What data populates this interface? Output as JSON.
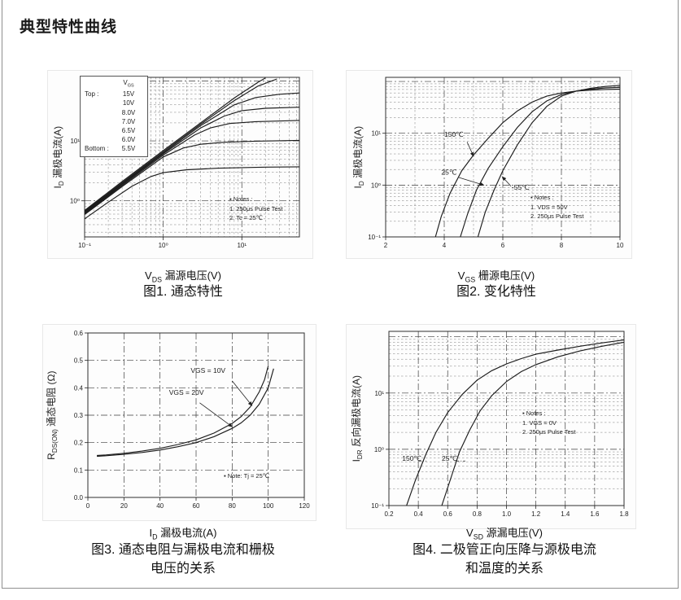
{
  "page": {
    "title": "典型特性曲线"
  },
  "chart_data": [
    {
      "id": "fig1",
      "type": "line",
      "caption": "图1. 通态特性",
      "xlabel": {
        "base": "V",
        "sub": "DS",
        "cn": "漏源电压(V)"
      },
      "ylabel": {
        "base": "I",
        "sub": "D",
        "cn": "漏极电流(A)"
      },
      "xscale": "log",
      "yscale": "log",
      "xlim": [
        0.1,
        54
      ],
      "ylim": [
        0.25,
        115
      ],
      "xticks": [
        {
          "v": 0.1,
          "l": "10⁻¹"
        },
        {
          "v": 1,
          "l": "10⁰"
        },
        {
          "v": 10,
          "l": "10¹"
        }
      ],
      "yticks": [
        {
          "v": 1,
          "l": "10⁰"
        },
        {
          "v": 10,
          "l": "10¹"
        }
      ],
      "legend": {
        "header": {
          "base": "V",
          "sub": "GS"
        },
        "top_label": "Top :",
        "bottom_label": "Bottom :",
        "values": [
          "15V",
          "10V",
          "8.0V",
          "7.0V",
          "6.5V",
          "6.0V",
          "5.5V"
        ]
      },
      "notes": [
        "▪ Notes :",
        "1. 250μs Pulse Test",
        "2. Tc = 25℃"
      ],
      "series": [
        {
          "name": "VGS=15V",
          "points": [
            [
              0.1,
              0.69
            ],
            [
              0.3,
              2.1
            ],
            [
              1,
              6.9
            ],
            [
              3,
              20
            ],
            [
              8,
              52
            ],
            [
              16,
              95
            ],
            [
              20,
              112
            ]
          ]
        },
        {
          "name": "VGS=10V",
          "points": [
            [
              0.1,
              0.67
            ],
            [
              0.3,
              2.0
            ],
            [
              1,
              6.6
            ],
            [
              3,
              19
            ],
            [
              8,
              47
            ],
            [
              16,
              82
            ],
            [
              28,
              108
            ]
          ]
        },
        {
          "name": "VGS=8.0V",
          "points": [
            [
              0.1,
              0.65
            ],
            [
              0.3,
              1.93
            ],
            [
              1,
              6.3
            ],
            [
              3,
              18
            ],
            [
              8,
              40
            ],
            [
              15,
              53
            ],
            [
              30,
              60
            ],
            [
              54,
              63
            ]
          ]
        },
        {
          "name": "VGS=7.0V",
          "points": [
            [
              0.1,
              0.63
            ],
            [
              0.3,
              1.87
            ],
            [
              1,
              6.1
            ],
            [
              3,
              16.5
            ],
            [
              6,
              26
            ],
            [
              10,
              32
            ],
            [
              20,
              35
            ],
            [
              54,
              36.5
            ]
          ]
        },
        {
          "name": "VGS=6.5V",
          "points": [
            [
              0.1,
              0.61
            ],
            [
              0.3,
              1.8
            ],
            [
              1,
              5.8
            ],
            [
              2.5,
              12.5
            ],
            [
              4,
              16.5
            ],
            [
              7,
              19.5
            ],
            [
              15,
              21
            ],
            [
              54,
              22
            ]
          ]
        },
        {
          "name": "VGS=6.0V",
          "points": [
            [
              0.1,
              0.59
            ],
            [
              0.3,
              1.73
            ],
            [
              1,
              5.4
            ],
            [
              1.8,
              7.6
            ],
            [
              3,
              8.8
            ],
            [
              6,
              9.5
            ],
            [
              15,
              9.9
            ],
            [
              54,
              10.2
            ]
          ]
        },
        {
          "name": "VGS=5.5V",
          "points": [
            [
              0.1,
              0.5
            ],
            [
              0.2,
              0.95
            ],
            [
              0.4,
              1.75
            ],
            [
              0.7,
              2.55
            ],
            [
              1,
              2.95
            ],
            [
              2,
              3.3
            ],
            [
              5,
              3.5
            ],
            [
              20,
              3.65
            ],
            [
              54,
              3.7
            ]
          ]
        }
      ],
      "annotations": []
    },
    {
      "id": "fig2",
      "type": "line",
      "caption": "图2. 变化特性",
      "xlabel": {
        "base": "V",
        "sub": "GS",
        "cn": "栅源电压(V)"
      },
      "ylabel": {
        "base": "I",
        "sub": "D",
        "cn": "漏极电流(A)"
      },
      "xscale": "linear",
      "yscale": "log",
      "xlim": [
        2,
        10
      ],
      "ylim": [
        0.1,
        120
      ],
      "xticks": [
        {
          "v": 2,
          "l": "2"
        },
        {
          "v": 4,
          "l": "4"
        },
        {
          "v": 6,
          "l": "6"
        },
        {
          "v": 8,
          "l": "8"
        },
        {
          "v": 10,
          "l": "10"
        }
      ],
      "yticks": [
        {
          "v": 0.1,
          "l": "10⁻¹"
        },
        {
          "v": 1,
          "l": "10⁰"
        },
        {
          "v": 10,
          "l": "10¹"
        }
      ],
      "xgrid_major": [
        4,
        6,
        8
      ],
      "xgrid_minor": [
        3,
        5,
        7,
        9
      ],
      "notes": [
        "▪ Notes :",
        "1. VDS = 50V",
        "2. 250μs Pulse Test"
      ],
      "series": [
        {
          "name": "150℃",
          "points": [
            [
              3.7,
              0.1
            ],
            [
              3.9,
              0.25
            ],
            [
              4.2,
              0.7
            ],
            [
              4.6,
              1.9
            ],
            [
              5,
              3.8
            ],
            [
              5.5,
              8
            ],
            [
              6,
              16
            ],
            [
              6.5,
              27
            ],
            [
              7,
              40
            ],
            [
              7.5,
              52
            ],
            [
              8,
              60
            ],
            [
              8.5,
              65
            ],
            [
              9,
              68
            ],
            [
              9.5,
              70
            ],
            [
              10,
              71
            ]
          ]
        },
        {
          "name": "25℃",
          "points": [
            [
              4.55,
              0.1
            ],
            [
              4.8,
              0.28
            ],
            [
              5.1,
              0.8
            ],
            [
              5.5,
              2.1
            ],
            [
              6,
              5.5
            ],
            [
              6.5,
              13
            ],
            [
              7,
              26
            ],
            [
              7.5,
              42
            ],
            [
              8,
              56
            ],
            [
              8.5,
              65
            ],
            [
              9,
              71
            ],
            [
              9.5,
              75
            ],
            [
              10,
              77
            ]
          ]
        },
        {
          "name": "-55℃",
          "points": [
            [
              5.15,
              0.1
            ],
            [
              5.4,
              0.3
            ],
            [
              5.7,
              0.8
            ],
            [
              6,
              1.9
            ],
            [
              6.5,
              6
            ],
            [
              7,
              16
            ],
            [
              7.5,
              33
            ],
            [
              8,
              52
            ],
            [
              8.5,
              65
            ],
            [
              9,
              74
            ],
            [
              9.5,
              80
            ],
            [
              10,
              84
            ]
          ]
        }
      ],
      "annotations": [
        {
          "text": "150℃",
          "x": 4.0,
          "y": 8.5,
          "fx": 4.78,
          "fy": 6.8,
          "ax": 5.0,
          "ay": 3.6,
          "arrow": true
        },
        {
          "text": "25℃",
          "x": 3.9,
          "y": 1.6,
          "fx": 4.5,
          "fy": 1.4,
          "ax": 5.35,
          "ay": 1.0,
          "arrow": true
        },
        {
          "text": "-55℃",
          "x": 6.3,
          "y": 0.82,
          "fx": 6.28,
          "fy": 0.95,
          "ax": 5.98,
          "ay": 1.45,
          "arrow": true
        }
      ]
    },
    {
      "id": "fig3",
      "type": "line",
      "caption": "图3. 通态电阻与漏极电流和栅极\n电压的关系",
      "xlabel": {
        "base": "I",
        "sub": "D",
        "cn": "漏极电流(A)"
      },
      "ylabel": {
        "base": "R",
        "sub": "DS(ON)",
        "cn": "通态电阻 (Ω)"
      },
      "xscale": "linear",
      "yscale": "linear",
      "xlim": [
        0,
        120
      ],
      "ylim": [
        0,
        0.6
      ],
      "xticks": [
        {
          "v": 0,
          "l": "0"
        },
        {
          "v": 20,
          "l": "20"
        },
        {
          "v": 40,
          "l": "40"
        },
        {
          "v": 60,
          "l": "60"
        },
        {
          "v": 80,
          "l": "80"
        },
        {
          "v": 100,
          "l": "100"
        },
        {
          "v": 120,
          "l": "120"
        }
      ],
      "yticks": [
        {
          "v": 0,
          "l": "0.0"
        },
        {
          "v": 0.1,
          "l": "0.1"
        },
        {
          "v": 0.2,
          "l": "0.2"
        },
        {
          "v": 0.3,
          "l": "0.3"
        },
        {
          "v": 0.4,
          "l": "0.4"
        },
        {
          "v": 0.5,
          "l": "0.5"
        },
        {
          "v": 0.6,
          "l": "0.6"
        }
      ],
      "xgrid_major": [
        20,
        40,
        60,
        80,
        100
      ],
      "ygrid_major": [
        0.1,
        0.2,
        0.3,
        0.4,
        0.5
      ],
      "notes": [
        "▪ Note: Tj = 25℃"
      ],
      "series": [
        {
          "name": "VGS=10V",
          "points": [
            [
              5,
              0.153
            ],
            [
              10,
              0.155
            ],
            [
              20,
              0.161
            ],
            [
              30,
              0.169
            ],
            [
              40,
              0.179
            ],
            [
              50,
              0.193
            ],
            [
              60,
              0.21
            ],
            [
              70,
              0.235
            ],
            [
              80,
              0.27
            ],
            [
              85,
              0.295
            ],
            [
              90,
              0.33
            ],
            [
              95,
              0.385
            ],
            [
              98,
              0.43
            ],
            [
              100,
              0.48
            ]
          ]
        },
        {
          "name": "VGS=20V",
          "points": [
            [
              5,
              0.15
            ],
            [
              10,
              0.152
            ],
            [
              20,
              0.157
            ],
            [
              30,
              0.164
            ],
            [
              40,
              0.173
            ],
            [
              50,
              0.185
            ],
            [
              60,
              0.2
            ],
            [
              70,
              0.222
            ],
            [
              80,
              0.252
            ],
            [
              85,
              0.272
            ],
            [
              90,
              0.3
            ],
            [
              95,
              0.34
            ],
            [
              100,
              0.4
            ],
            [
              103,
              0.47
            ]
          ]
        }
      ],
      "annotations": [
        {
          "text": "VGS = 10V",
          "x": 57,
          "y": 0.455,
          "fx": 80,
          "fy": 0.425,
          "ax": 91,
          "ay": 0.335,
          "arrow": true
        },
        {
          "text": "VGS = 20V",
          "x": 45,
          "y": 0.375,
          "fx": 62,
          "fy": 0.345,
          "ax": 80,
          "ay": 0.258,
          "arrow": true
        }
      ]
    },
    {
      "id": "fig4",
      "type": "line",
      "caption": "图4. 二极管正向压降与源极电流\n和温度的关系",
      "xlabel": {
        "base": "V",
        "sub": "SD",
        "cn": "源漏电压(V)"
      },
      "ylabel": {
        "base": "I",
        "sub": "DR",
        "cn": "反向漏极电流(A)"
      },
      "xscale": "linear",
      "yscale": "log",
      "xlim": [
        0.2,
        1.8
      ],
      "ylim": [
        0.1,
        125
      ],
      "xticks": [
        {
          "v": 0.2,
          "l": "0.2"
        },
        {
          "v": 0.4,
          "l": "0.4"
        },
        {
          "v": 0.6,
          "l": "0.6"
        },
        {
          "v": 0.8,
          "l": "0.8"
        },
        {
          "v": 1.0,
          "l": "1.0"
        },
        {
          "v": 1.2,
          "l": "1.2"
        },
        {
          "v": 1.4,
          "l": "1.4"
        },
        {
          "v": 1.6,
          "l": "1.6"
        },
        {
          "v": 1.8,
          "l": "1.8"
        }
      ],
      "yticks": [
        {
          "v": 0.1,
          "l": "10⁻¹"
        },
        {
          "v": 1,
          "l": "10⁰"
        },
        {
          "v": 10,
          "l": "10¹"
        }
      ],
      "xgrid_major": [
        0.4,
        0.6,
        0.8,
        1.0,
        1.2,
        1.4,
        1.6
      ],
      "notes": [
        "▪ Notes :",
        "1. VGS = 0V",
        "2. 250μs Pulse Test"
      ],
      "series": [
        {
          "name": "150℃",
          "points": [
            [
              0.32,
              0.1
            ],
            [
              0.38,
              0.28
            ],
            [
              0.45,
              0.8
            ],
            [
              0.52,
              2
            ],
            [
              0.6,
              4.5
            ],
            [
              0.7,
              9.5
            ],
            [
              0.8,
              17
            ],
            [
              0.9,
              25
            ],
            [
              1.0,
              33
            ],
            [
              1.1,
              41
            ],
            [
              1.2,
              49
            ],
            [
              1.35,
              58
            ],
            [
              1.5,
              68
            ],
            [
              1.65,
              78
            ],
            [
              1.8,
              88
            ]
          ]
        },
        {
          "name": "25℃",
          "points": [
            [
              0.56,
              0.1
            ],
            [
              0.62,
              0.3
            ],
            [
              0.68,
              0.9
            ],
            [
              0.75,
              2.2
            ],
            [
              0.82,
              4.8
            ],
            [
              0.9,
              9
            ],
            [
              1.0,
              16
            ],
            [
              1.1,
              24
            ],
            [
              1.2,
              32
            ],
            [
              1.35,
              44
            ],
            [
              1.5,
              56
            ],
            [
              1.65,
              68
            ],
            [
              1.8,
              80
            ]
          ]
        }
      ],
      "annotations": [
        {
          "text": "150℃",
          "x": 0.29,
          "y": 0.62,
          "fx": 0.4,
          "fy": 0.62,
          "ax": 0.455,
          "ay": 0.62,
          "leader": true
        },
        {
          "text": "25℃",
          "x": 0.56,
          "y": 0.62,
          "fx": 0.655,
          "fy": 0.62,
          "ax": 0.72,
          "ay": 0.62,
          "leader": true
        }
      ]
    }
  ]
}
